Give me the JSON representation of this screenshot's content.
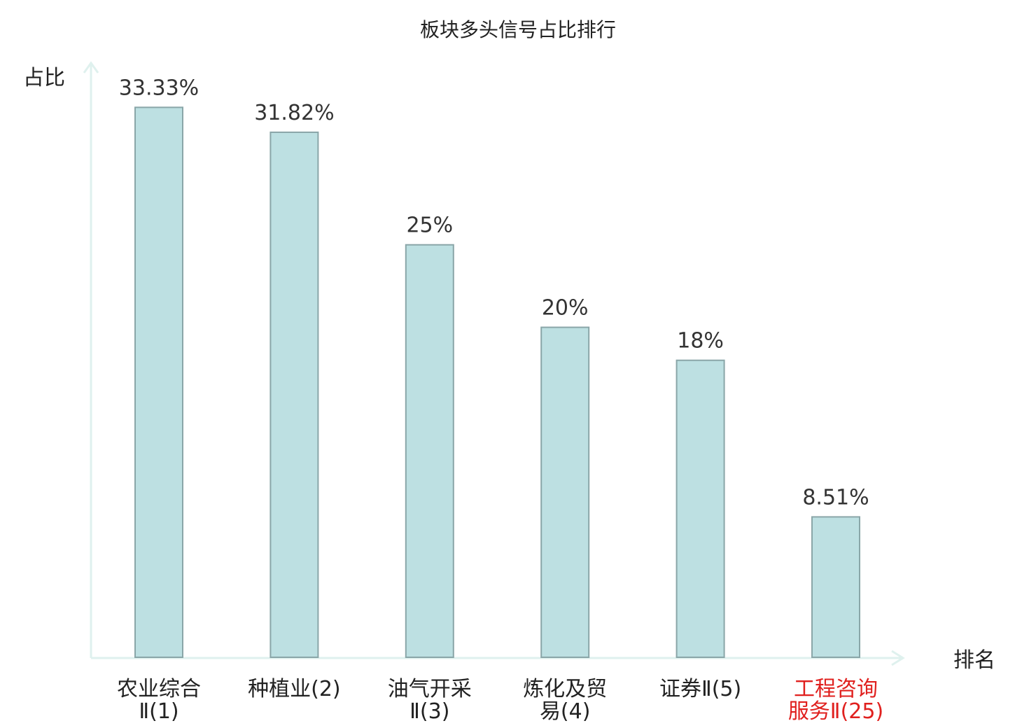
{
  "chart_data": {
    "type": "bar",
    "title": "板块多头信号占比排行",
    "ylabel": "占比",
    "xlabel": "排名",
    "categories": [
      {
        "lines": [
          "农业综合",
          "Ⅱ(1)"
        ],
        "highlight": false
      },
      {
        "lines": [
          "种植业(2)"
        ],
        "highlight": false
      },
      {
        "lines": [
          "油气开采",
          "Ⅱ(3)"
        ],
        "highlight": false
      },
      {
        "lines": [
          "炼化及贸",
          "易(4)"
        ],
        "highlight": false
      },
      {
        "lines": [
          "证券Ⅱ(5)"
        ],
        "highlight": false
      },
      {
        "lines": [
          "工程咨询",
          "服务Ⅱ(25)"
        ],
        "highlight": true
      }
    ],
    "values": [
      33.33,
      31.82,
      25,
      20,
      18,
      8.51
    ],
    "value_labels": [
      "33.33%",
      "31.82%",
      "25%",
      "20%",
      "18%",
      "8.51%"
    ],
    "ylim": [
      0,
      35
    ],
    "grid": false,
    "colors": {
      "bar_fill": "#bde0e2",
      "bar_stroke": "#8aa6a8",
      "axis": "#dff1ee",
      "label": "#222222",
      "highlight": "#e0201e"
    }
  }
}
